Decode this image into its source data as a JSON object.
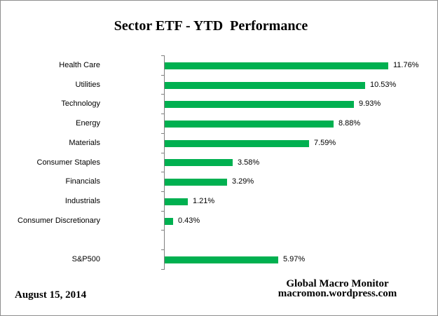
{
  "title": "Sector ETF - YTD  Performance",
  "chart_data": {
    "type": "bar",
    "orientation": "horizontal",
    "title": "Sector ETF - YTD  Performance",
    "xlabel": "",
    "ylabel": "",
    "xlim": [
      0,
      12
    ],
    "grid": false,
    "legend": false,
    "categories": [
      "Health Care",
      "Utilities",
      "Technology",
      "Energy",
      "Materials",
      "Consumer Staples",
      "Financials",
      "Industrials",
      "Consumer Discretionary",
      "",
      "S&P500"
    ],
    "values": [
      11.76,
      10.53,
      9.93,
      8.88,
      7.59,
      3.58,
      3.29,
      1.21,
      0.43,
      null,
      5.97
    ],
    "data_labels": [
      "11.76%",
      "10.53%",
      "9.93%",
      "8.88%",
      "7.59%",
      "3.58%",
      "3.29%",
      "1.21%",
      "0.43%",
      "",
      "5.97%"
    ],
    "bar_color": "#00B050",
    "axis_color": "#808080",
    "text_color": "#000000"
  },
  "footer": {
    "date": "August 15, 2014",
    "source_line1": "Global Macro Monitor",
    "source_line2": "macromon.wordpress.com"
  }
}
